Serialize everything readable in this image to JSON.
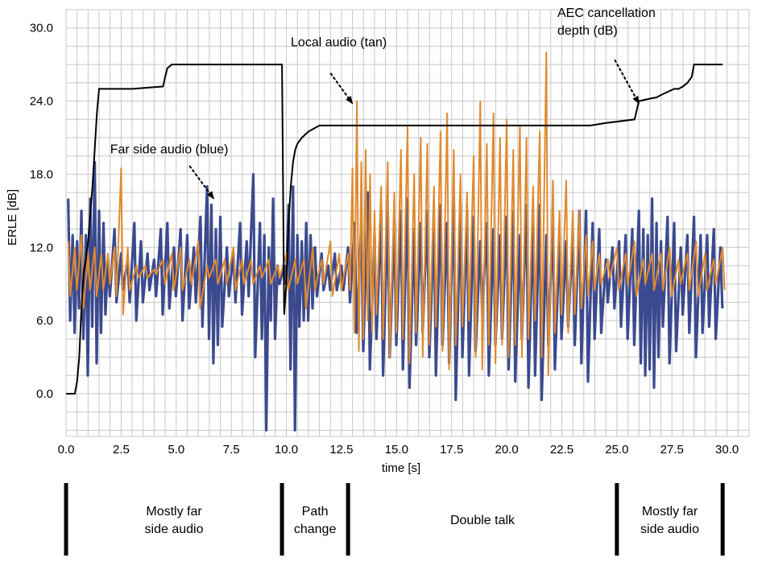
{
  "chart_data": {
    "type": "line",
    "xlabel": "time [s]",
    "ylabel": "ERLE [dB]",
    "xlim": [
      0,
      31
    ],
    "ylim": [
      -3.5,
      31.5
    ],
    "x_ticks": [
      "0.0",
      "2.5",
      "5.0",
      "7.5",
      "10.0",
      "12.5",
      "15.0",
      "17.5",
      "20.0",
      "22.5",
      "25.0",
      "27.5",
      "30.0"
    ],
    "y_ticks": [
      "30.0",
      "24.0",
      "18.0",
      "12.0",
      "6.0",
      "0.0"
    ],
    "grid": true,
    "colors": {
      "far_audio": "#3b4a8f",
      "local_audio": "#e08a2e",
      "aec_depth": "#000000",
      "grid": "#c8c8c8"
    },
    "series": [
      {
        "key": "aec_depth",
        "x": [
          0.0,
          0.4,
          0.5,
          0.6,
          0.7,
          0.8,
          0.9,
          1.0,
          1.2,
          1.4,
          1.5,
          3.0,
          4.4,
          4.5,
          4.6,
          4.8,
          5.0,
          7.0,
          9.0,
          9.8,
          9.9,
          10.0,
          10.1,
          10.2,
          10.3,
          10.4,
          10.5,
          10.7,
          11.0,
          11.5,
          12.0,
          14.0,
          18.0,
          22.0,
          23.8,
          24.5,
          25.8,
          26.0,
          26.5,
          26.8,
          27.0,
          27.6,
          27.8,
          28.0,
          28.2,
          28.4,
          28.5,
          29.0,
          29.8
        ],
        "y": [
          0.0,
          0.0,
          1.0,
          3.0,
          7.0,
          10.0,
          11.0,
          12.5,
          17.0,
          23.0,
          25.0,
          25.0,
          25.2,
          26.0,
          26.7,
          27.0,
          27.0,
          27.0,
          27.0,
          27.0,
          6.5,
          9.0,
          14.0,
          17.0,
          19.0,
          20.0,
          20.5,
          21.0,
          21.5,
          22.0,
          22.0,
          22.0,
          22.0,
          22.0,
          22.0,
          22.2,
          22.5,
          24.0,
          24.2,
          24.3,
          24.5,
          25.0,
          25.0,
          25.2,
          25.5,
          26.0,
          27.0,
          27.0,
          27.0
        ]
      },
      {
        "key": "far_audio",
        "x": [
          0.1,
          0.3,
          0.5,
          0.7,
          0.9,
          1.1,
          1.3,
          1.5,
          1.7,
          1.9,
          2.2,
          2.5,
          2.8,
          3.1,
          3.4,
          3.7,
          4.0,
          4.3,
          4.6,
          4.9,
          5.2,
          5.5,
          5.8,
          6.1,
          6.4,
          6.6,
          6.8,
          7.0,
          7.3,
          7.6,
          7.9,
          8.2,
          8.5,
          8.8,
          9.0,
          9.2,
          9.4,
          9.6,
          9.9,
          10.1,
          10.3,
          10.5,
          10.7,
          10.9,
          11.1,
          11.3,
          11.6,
          11.9,
          12.2,
          12.5,
          12.8,
          13.1,
          13.4,
          13.7,
          14.0,
          14.3,
          14.6,
          14.9,
          15.2,
          15.5,
          15.8,
          16.1,
          16.4,
          16.7,
          17.0,
          17.3,
          17.6,
          17.9,
          18.2,
          18.5,
          18.8,
          19.1,
          19.4,
          19.7,
          20.0,
          20.3,
          20.6,
          20.9,
          21.2,
          21.5,
          21.8,
          22.1,
          22.4,
          22.7,
          23.0,
          23.3,
          23.6,
          23.9,
          24.2,
          24.5,
          24.8,
          25.1,
          25.4,
          25.7,
          26.0,
          26.2,
          26.4,
          26.6,
          26.8,
          27.0,
          27.3,
          27.6,
          27.9,
          28.2,
          28.5,
          28.8,
          29.1,
          29.4,
          29.7
        ],
        "high": [
          16.0,
          13.0,
          12.5,
          15.0,
          13.0,
          16.0,
          19.0,
          15.0,
          14.0,
          11.0,
          13.5,
          11.5,
          11.0,
          14.0,
          12.5,
          11.5,
          11.0,
          13.5,
          14.0,
          12.0,
          13.5,
          13.0,
          12.0,
          14.5,
          17.0,
          15.5,
          13.5,
          14.5,
          12.0,
          11.5,
          14.0,
          12.5,
          18.0,
          14.0,
          13.0,
          12.0,
          16.0,
          10.5,
          10.5,
          15.5,
          17.0,
          13.0,
          12.5,
          14.0,
          13.0,
          12.0,
          11.5,
          10.5,
          11.5,
          10.5,
          12.0,
          14.0,
          14.0,
          16.5,
          13.0,
          15.0,
          15.0,
          14.0,
          15.0,
          16.0,
          13.5,
          14.0,
          15.0,
          14.0,
          15.5,
          14.0,
          16.5,
          15.5,
          15.0,
          14.5,
          12.5,
          14.0,
          13.5,
          13.0,
          14.5,
          15.0,
          13.0,
          15.5,
          14.5,
          15.5,
          13.0,
          14.5,
          13.0,
          12.5,
          13.0,
          15.0,
          15.0,
          14.0,
          13.5,
          11.0,
          12.0,
          12.5,
          13.0,
          13.5,
          15.0,
          13.5,
          13.0,
          16.0,
          14.0,
          12.5,
          14.5,
          14.0,
          12.0,
          13.0,
          14.5,
          13.0,
          13.0,
          13.5,
          12.0
        ],
        "low": [
          6.0,
          5.0,
          7.0,
          4.5,
          1.5,
          5.5,
          2.5,
          5.0,
          6.5,
          8.0,
          7.5,
          8.5,
          7.5,
          6.0,
          7.5,
          8.5,
          8.0,
          6.5,
          7.0,
          8.0,
          6.0,
          7.0,
          7.5,
          5.5,
          4.5,
          2.5,
          4.0,
          5.5,
          8.0,
          7.5,
          6.5,
          8.0,
          3.0,
          4.5,
          -3.0,
          6.0,
          4.5,
          9.0,
          9.0,
          2.0,
          -3.0,
          5.5,
          6.0,
          6.0,
          7.0,
          8.0,
          8.5,
          8.5,
          8.5,
          8.5,
          7.5,
          5.0,
          3.5,
          2.0,
          4.5,
          1.5,
          3.0,
          4.0,
          2.0,
          0.5,
          4.0,
          5.0,
          3.0,
          1.5,
          4.0,
          2.5,
          -0.5,
          3.0,
          1.5,
          3.5,
          6.5,
          1.5,
          4.0,
          4.5,
          2.0,
          1.0,
          4.5,
          0.5,
          1.5,
          -0.5,
          4.0,
          2.0,
          4.5,
          5.5,
          4.0,
          2.5,
          1.0,
          4.5,
          5.0,
          7.5,
          7.0,
          5.5,
          4.5,
          4.0,
          2.5,
          1.5,
          2.0,
          0.5,
          3.0,
          5.5,
          2.5,
          3.5,
          6.5,
          5.0,
          3.0,
          5.0,
          5.5,
          4.5,
          7.0
        ]
      },
      {
        "key": "local_audio",
        "x": [
          0.1,
          0.4,
          0.7,
          1.0,
          1.3,
          1.6,
          1.9,
          2.2,
          2.5,
          2.8,
          3.2,
          3.6,
          4.0,
          4.4,
          4.8,
          5.2,
          5.6,
          6.0,
          6.4,
          6.8,
          7.2,
          7.6,
          8.0,
          8.4,
          8.8,
          9.2,
          9.6,
          10.0,
          10.4,
          10.8,
          11.2,
          11.6,
          12.0,
          12.4,
          12.8,
          13.0,
          13.2,
          13.4,
          13.6,
          13.8,
          14.0,
          14.3,
          14.6,
          14.9,
          15.2,
          15.5,
          15.8,
          16.1,
          16.4,
          16.7,
          17.0,
          17.3,
          17.6,
          17.9,
          18.2,
          18.5,
          18.8,
          19.1,
          19.4,
          19.7,
          20.0,
          20.3,
          20.6,
          20.9,
          21.2,
          21.5,
          21.8,
          22.1,
          22.4,
          22.7,
          23.0,
          23.3,
          23.6,
          23.9,
          24.2,
          24.6,
          25.0,
          25.4,
          25.8,
          26.2,
          26.6,
          27.0,
          27.4,
          27.8,
          28.2,
          28.6,
          29.0,
          29.4,
          29.8
        ],
        "high": [
          12.5,
          12.0,
          13.0,
          11.5,
          12.0,
          11.5,
          11.5,
          12.0,
          18.5,
          12.0,
          10.5,
          10.5,
          10.2,
          11.0,
          11.5,
          12.0,
          11.0,
          12.5,
          10.5,
          11.0,
          11.0,
          12.0,
          11.0,
          11.0,
          10.5,
          11.0,
          10.5,
          11.5,
          11.0,
          11.0,
          12.0,
          11.0,
          12.5,
          11.5,
          11.5,
          18.5,
          24.0,
          19.0,
          20.0,
          18.0,
          15.0,
          17.0,
          19.0,
          16.5,
          20.0,
          22.0,
          18.0,
          21.0,
          20.5,
          17.0,
          21.5,
          23.0,
          20.0,
          18.0,
          16.5,
          19.5,
          24.0,
          20.5,
          23.0,
          21.0,
          22.5,
          20.0,
          22.0,
          21.0,
          17.0,
          21.5,
          28.0,
          17.5,
          15.0,
          17.5,
          15.0,
          15.0,
          13.0,
          12.5,
          11.5,
          11.0,
          12.0,
          11.5,
          12.5,
          11.0,
          11.5,
          11.5,
          12.0,
          11.0,
          11.5,
          12.5,
          11.5,
          11.0,
          12.0
        ],
        "low": [
          8.0,
          8.5,
          7.0,
          8.5,
          8.0,
          8.5,
          9.0,
          8.0,
          6.5,
          8.5,
          9.5,
          9.5,
          9.8,
          9.0,
          8.5,
          8.5,
          9.0,
          7.0,
          9.5,
          9.0,
          9.0,
          8.5,
          9.0,
          9.0,
          9.5,
          9.0,
          9.5,
          8.5,
          9.0,
          7.0,
          8.5,
          9.0,
          8.0,
          8.5,
          8.5,
          5.0,
          3.5,
          4.5,
          6.0,
          5.0,
          6.5,
          4.5,
          3.0,
          5.0,
          4.5,
          2.5,
          5.0,
          3.0,
          4.0,
          5.5,
          3.5,
          2.0,
          4.0,
          5.5,
          6.0,
          3.0,
          2.0,
          4.0,
          2.5,
          4.0,
          3.0,
          4.0,
          3.0,
          4.5,
          6.0,
          3.0,
          1.5,
          5.0,
          6.5,
          5.0,
          6.5,
          7.0,
          8.0,
          8.5,
          9.0,
          9.5,
          8.5,
          9.0,
          8.0,
          9.0,
          8.5,
          8.5,
          8.0,
          9.0,
          8.5,
          8.0,
          8.5,
          9.0,
          8.5
        ]
      }
    ],
    "annotations": [
      {
        "key": "local",
        "lines": [
          "Local audio (tan)"
        ],
        "text_x": 10.2,
        "text_y": 28.5,
        "arrow_from": [
          12.0,
          26.3
        ],
        "arrow_to": [
          13.0,
          23.8
        ]
      },
      {
        "key": "far",
        "lines": [
          "Far side audio (blue)"
        ],
        "text_x": 2.0,
        "text_y": 19.7,
        "arrow_from": [
          5.6,
          18.7
        ],
        "arrow_to": [
          6.7,
          16.0
        ]
      },
      {
        "key": "aec",
        "lines": [
          "AEC cancellation",
          "depth (dB)"
        ],
        "text_x": 22.3,
        "text_y": 30.9,
        "arrow_from": [
          24.9,
          27.4
        ],
        "arrow_to": [
          26.0,
          23.8
        ]
      }
    ],
    "segments": {
      "boundaries": [
        0.0,
        9.8,
        12.8,
        25.0,
        29.8
      ],
      "labels": [
        [
          "Mostly far",
          "side audio"
        ],
        [
          "Path",
          "change"
        ],
        [
          "Double talk"
        ],
        [
          "Mostly far",
          "side audio"
        ]
      ]
    }
  }
}
